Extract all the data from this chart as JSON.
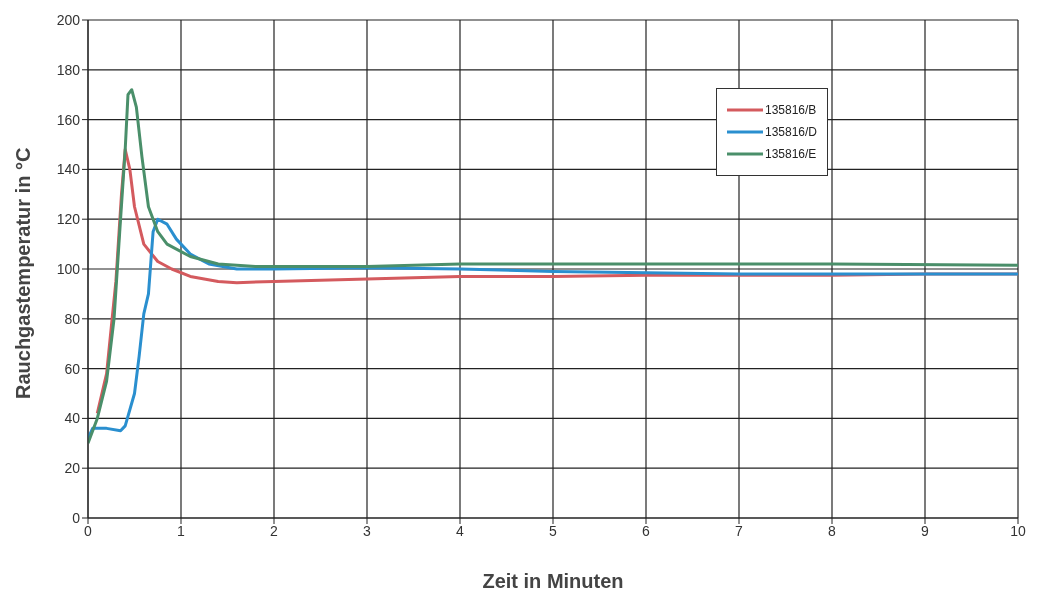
{
  "chart_data": {
    "type": "line",
    "xlabel": "Zeit in Minuten",
    "ylabel": "Rauchgastemperatur in °C",
    "xlim": [
      0,
      10
    ],
    "xticks": [
      0,
      1,
      2,
      3,
      4,
      5,
      6,
      7,
      8,
      9,
      10
    ],
    "ylim": [
      0,
      200
    ],
    "yticks": [
      0,
      20,
      40,
      60,
      80,
      100,
      120,
      140,
      160,
      180,
      200
    ],
    "grid": true,
    "legend": "top right",
    "marker": "none",
    "line_style": "solid",
    "series": [
      {
        "name": "135816/B",
        "color": "#d45a5e",
        "x": [
          0.1,
          0.2,
          0.3,
          0.36,
          0.4,
          0.45,
          0.5,
          0.6,
          0.75,
          0.9,
          1.1,
          1.4,
          1.6,
          2,
          3,
          4,
          5,
          6,
          7,
          8,
          9,
          10
        ],
        "values": [
          42,
          58,
          95,
          130,
          148,
          140,
          125,
          110,
          103,
          100,
          97,
          95,
          94.5,
          95,
          96,
          97,
          97,
          97.5,
          97.5,
          97.5,
          98,
          98
        ]
      },
      {
        "name": "135816/D",
        "color": "#2a8fcf",
        "x": [
          0,
          0.05,
          0.2,
          0.35,
          0.4,
          0.5,
          0.55,
          0.6,
          0.65,
          0.68,
          0.7,
          0.75,
          0.85,
          0.95,
          1.1,
          1.3,
          1.6,
          2,
          3,
          4,
          5,
          6,
          7,
          8,
          9,
          10
        ],
        "values": [
          32,
          36,
          36,
          35,
          37,
          50,
          65,
          82,
          90,
          105,
          115,
          120,
          118,
          112,
          106,
          102,
          100,
          100,
          100.5,
          100,
          99,
          98.5,
          98,
          98,
          98,
          98
        ]
      },
      {
        "name": "135816/E",
        "color": "#4a8f6a",
        "x": [
          0,
          0.1,
          0.2,
          0.28,
          0.35,
          0.4,
          0.43,
          0.47,
          0.52,
          0.58,
          0.65,
          0.75,
          0.85,
          1.1,
          1.4,
          1.8,
          3,
          4,
          6,
          8,
          10
        ],
        "values": [
          30,
          40,
          55,
          80,
          120,
          148,
          170,
          172,
          165,
          145,
          125,
          115,
          110,
          105,
          102,
          101,
          101,
          102,
          102,
          102,
          101.5
        ]
      }
    ]
  }
}
